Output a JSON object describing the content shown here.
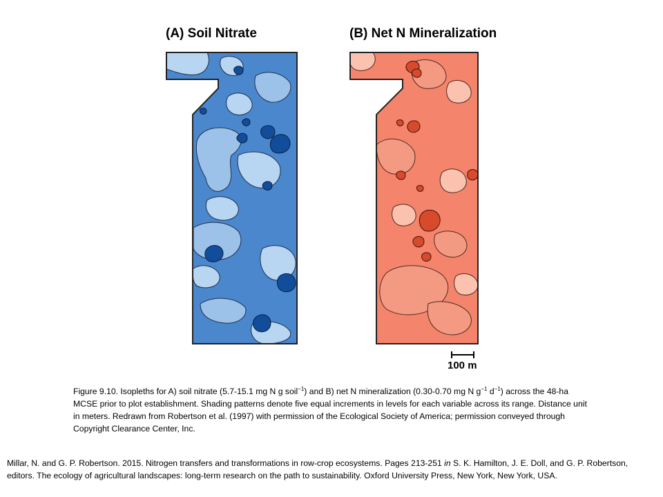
{
  "panels": [
    {
      "title": "(A) Soil Nitrate",
      "palette": [
        "#b8d6f2",
        "#9dc2ea",
        "#6fa5dc",
        "#4a87cd",
        "#114d9a"
      ]
    },
    {
      "title": "(B) Net N Mineralization",
      "palette": [
        "#fbc2b0",
        "#f59a82",
        "#f5846c",
        "#f07a5e",
        "#d84a2c"
      ]
    }
  ],
  "scale_bar": {
    "label": "100 m"
  },
  "caption": {
    "p1": "Figure 9.10.  Isopleths for A) soil nitrate (5.7-15.1 mg N g soil",
    "sup1": "−1",
    "p2": ") and B) net N mineralization (0.30-0.70 mg N g",
    "sup2": "−1",
    "p3": " d",
    "sup3": "−1",
    "p4": ") across the 48-ha MCSE prior to plot establishment. Shading patterns denote five equal increments in levels for each variable across its range. Distance unit in meters. Redrawn from Robertson et al. (1997)  with permission of the Ecological Society of America; permission conveyed through Copyright Clearance Center, Inc."
  },
  "citation": {
    "before_italic": "Millar, N. and G. P. Robertson. 2015. Nitrogen transfers and transformations in row-crop ecosystems. Pages 213-251 ",
    "italic": "in",
    "after_italic": " S. K. Hamilton, J. E. Doll, and G. P. Robertson, editors. The ecology of agricultural landscapes: long-term research on the path to sustainability. Oxford University Press, New York, New York, USA."
  }
}
